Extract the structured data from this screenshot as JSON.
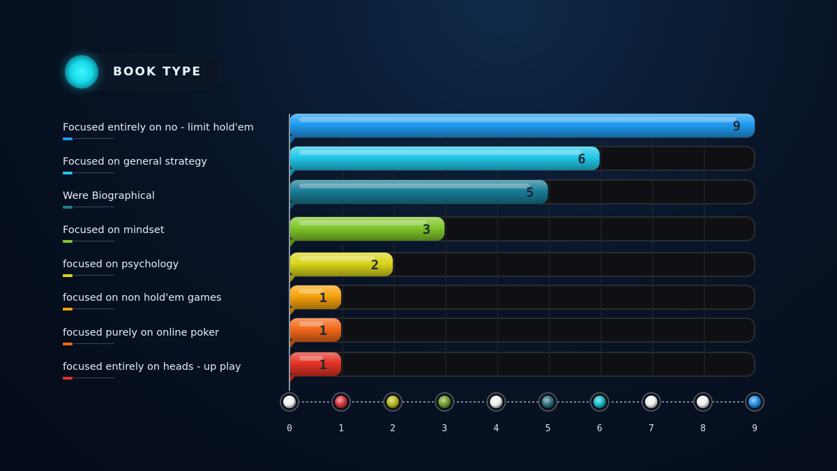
{
  "header": {
    "title": "BOOK TYPE"
  },
  "chart_data": {
    "type": "bar",
    "orientation": "horizontal",
    "title": "BOOK TYPE",
    "xlabel": "",
    "ylabel": "",
    "xlim": [
      0,
      9
    ],
    "ticks": [
      0,
      1,
      2,
      3,
      4,
      5,
      6,
      7,
      8,
      9
    ],
    "tick_labels": [
      "0",
      "1",
      "2",
      "3",
      "4",
      "5",
      "6",
      "7",
      "8",
      "9"
    ],
    "categories": [
      "Focused entirely on no - limit hold'em",
      "Focused on general strategy",
      "Were Biographical",
      "Focused on mindset",
      "focused on psychology",
      "focused on non hold'em games",
      "focused purely on online poker",
      "focused entirely on heads - up play"
    ],
    "values": [
      9,
      6,
      5,
      3,
      2,
      1,
      1,
      1
    ],
    "value_labels": [
      "9",
      "6",
      "5",
      "3",
      "2",
      "1",
      "1",
      "1"
    ],
    "colors": [
      "#1f9bf0",
      "#22c8ea",
      "#1a7d97",
      "#7fc62a",
      "#d9d61b",
      "#f7a20c",
      "#f2681a",
      "#e33324"
    ],
    "tick_marker_colors": [
      "#f0f0f0",
      "#d6343a",
      "#b6b81e",
      "#6f9c2a",
      "#f0f0f0",
      "#2f6f7f",
      "#18b9c8",
      "#f0f0f0",
      "#f0f0f0",
      "#1e8fe6"
    ],
    "grid": true,
    "legend": "left"
  }
}
